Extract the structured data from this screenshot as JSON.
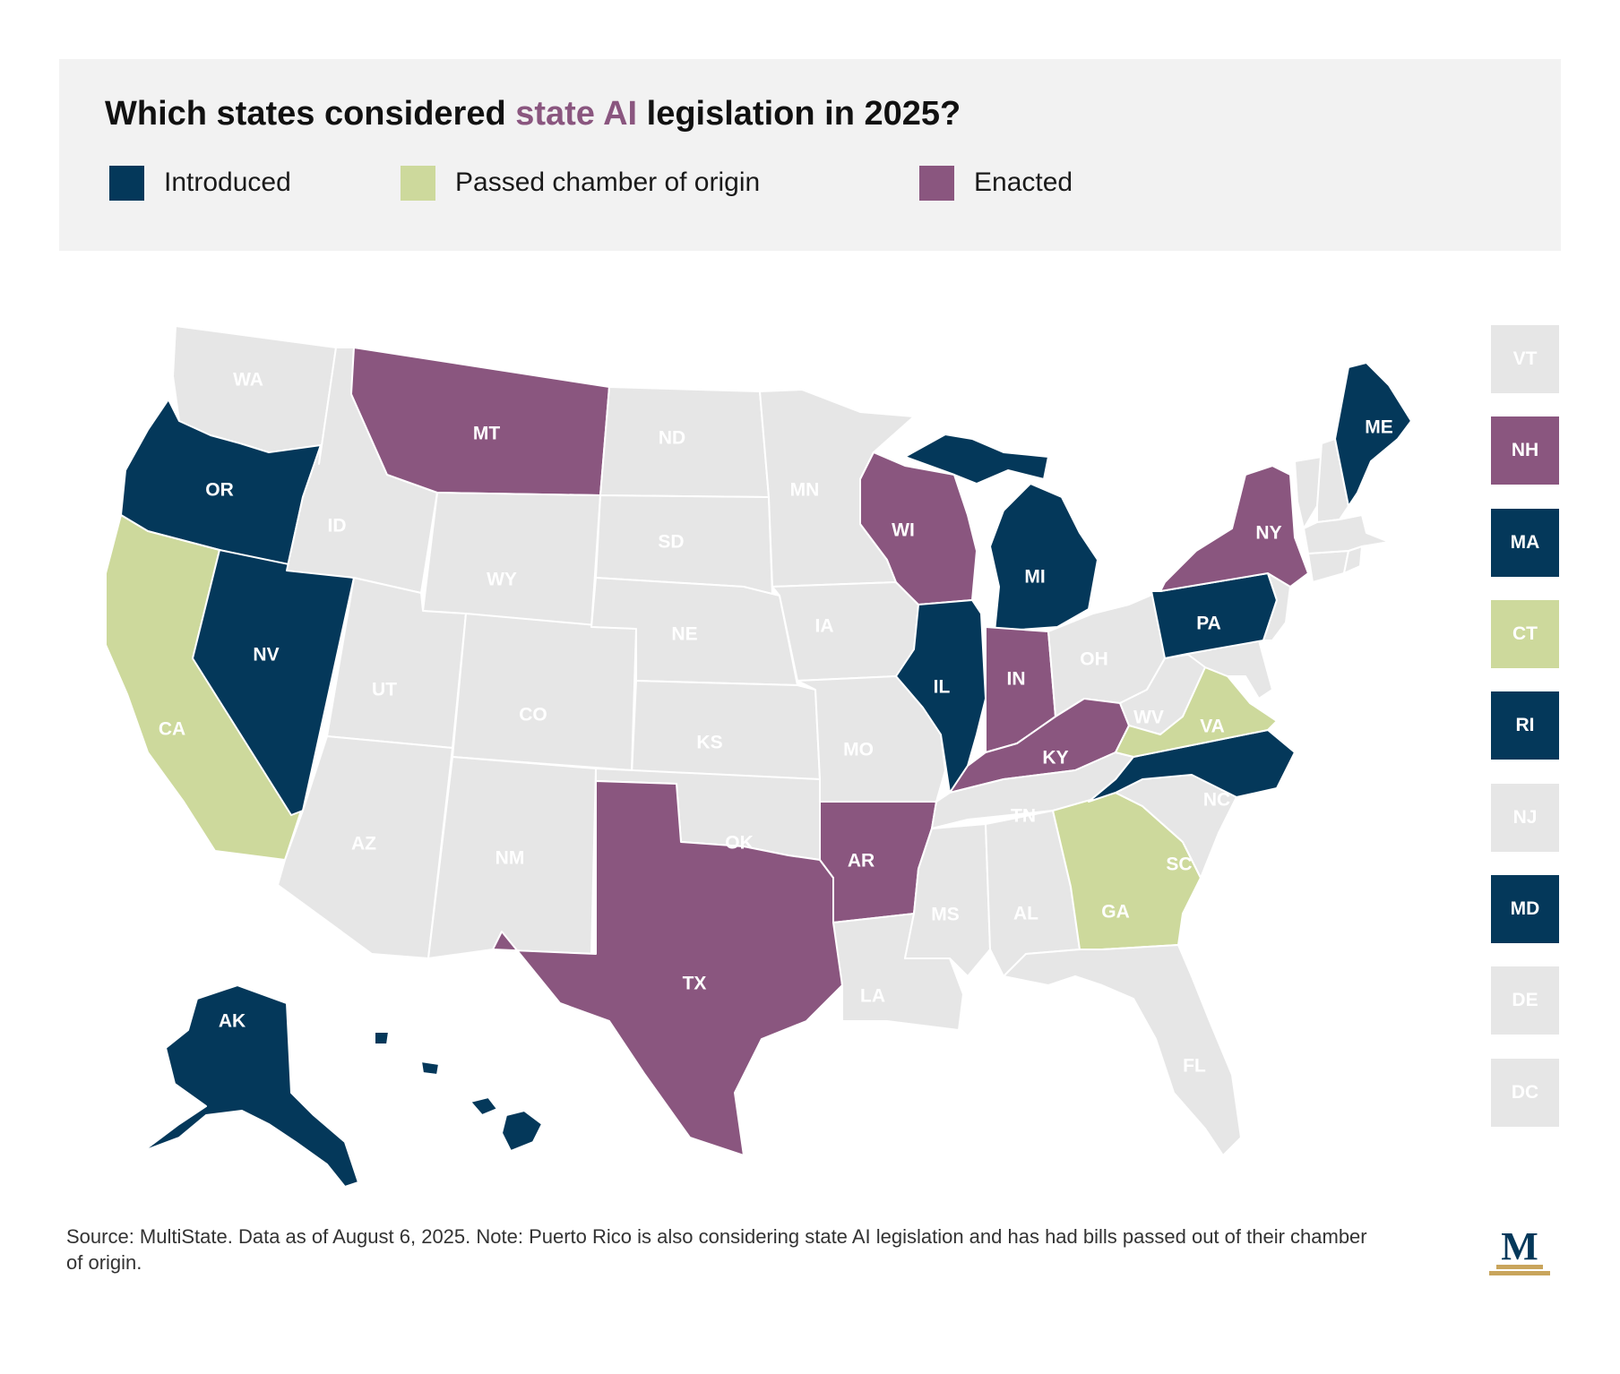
{
  "header": {
    "title_before": "Which states considered ",
    "title_accent": "state AI",
    "title_after": " legislation in 2025?"
  },
  "colors": {
    "introduced": "#04385a",
    "passed": "#cdd99c",
    "enacted": "#8a567f",
    "none": "#e6e6e6",
    "label_dark_fill": "#ffffff",
    "label_light_fill": "#ffffff"
  },
  "legend": [
    {
      "label": "Introduced",
      "status": "introduced"
    },
    {
      "label": "Passed chamber of origin",
      "status": "passed"
    },
    {
      "label": "Enacted",
      "status": "enacted"
    }
  ],
  "states": [
    {
      "abbr": "WA",
      "status": "none"
    },
    {
      "abbr": "OR",
      "status": "introduced"
    },
    {
      "abbr": "CA",
      "status": "passed"
    },
    {
      "abbr": "NV",
      "status": "introduced"
    },
    {
      "abbr": "ID",
      "status": "none"
    },
    {
      "abbr": "MT",
      "status": "enacted"
    },
    {
      "abbr": "WY",
      "status": "none"
    },
    {
      "abbr": "UT",
      "status": "none"
    },
    {
      "abbr": "AZ",
      "status": "none"
    },
    {
      "abbr": "CO",
      "status": "none"
    },
    {
      "abbr": "NM",
      "status": "none"
    },
    {
      "abbr": "ND",
      "status": "none"
    },
    {
      "abbr": "SD",
      "status": "none"
    },
    {
      "abbr": "NE",
      "status": "none"
    },
    {
      "abbr": "KS",
      "status": "none"
    },
    {
      "abbr": "OK",
      "status": "none"
    },
    {
      "abbr": "TX",
      "status": "enacted"
    },
    {
      "abbr": "MN",
      "status": "none"
    },
    {
      "abbr": "IA",
      "status": "none"
    },
    {
      "abbr": "MO",
      "status": "none"
    },
    {
      "abbr": "AR",
      "status": "enacted"
    },
    {
      "abbr": "LA",
      "status": "none"
    },
    {
      "abbr": "WI",
      "status": "enacted"
    },
    {
      "abbr": "IL",
      "status": "introduced"
    },
    {
      "abbr": "MI",
      "status": "introduced"
    },
    {
      "abbr": "IN",
      "status": "enacted"
    },
    {
      "abbr": "OH",
      "status": "none"
    },
    {
      "abbr": "KY",
      "status": "enacted"
    },
    {
      "abbr": "TN",
      "status": "none"
    },
    {
      "abbr": "MS",
      "status": "none"
    },
    {
      "abbr": "AL",
      "status": "none"
    },
    {
      "abbr": "GA",
      "status": "passed"
    },
    {
      "abbr": "FL",
      "status": "none"
    },
    {
      "abbr": "SC",
      "status": "none"
    },
    {
      "abbr": "NC",
      "status": "introduced"
    },
    {
      "abbr": "VA",
      "status": "passed"
    },
    {
      "abbr": "WV",
      "status": "none"
    },
    {
      "abbr": "PA",
      "status": "introduced"
    },
    {
      "abbr": "NY",
      "status": "enacted"
    },
    {
      "abbr": "ME",
      "status": "introduced"
    },
    {
      "abbr": "AK",
      "status": "introduced"
    },
    {
      "abbr": "HI",
      "status": "introduced"
    }
  ],
  "small_states": [
    {
      "abbr": "VT",
      "status": "none"
    },
    {
      "abbr": "NH",
      "status": "enacted"
    },
    {
      "abbr": "MA",
      "status": "introduced"
    },
    {
      "abbr": "CT",
      "status": "passed"
    },
    {
      "abbr": "RI",
      "status": "introduced"
    },
    {
      "abbr": "NJ",
      "status": "none"
    },
    {
      "abbr": "MD",
      "status": "introduced"
    },
    {
      "abbr": "DE",
      "status": "none"
    },
    {
      "abbr": "DC",
      "status": "none"
    }
  ],
  "footer": {
    "note": "Source: MultiState. Data as of August 6, 2025. Note: Puerto Rico is also considering state AI legislation and has had bills passed out of their chamber of origin."
  },
  "logo": {
    "letter": "M"
  }
}
